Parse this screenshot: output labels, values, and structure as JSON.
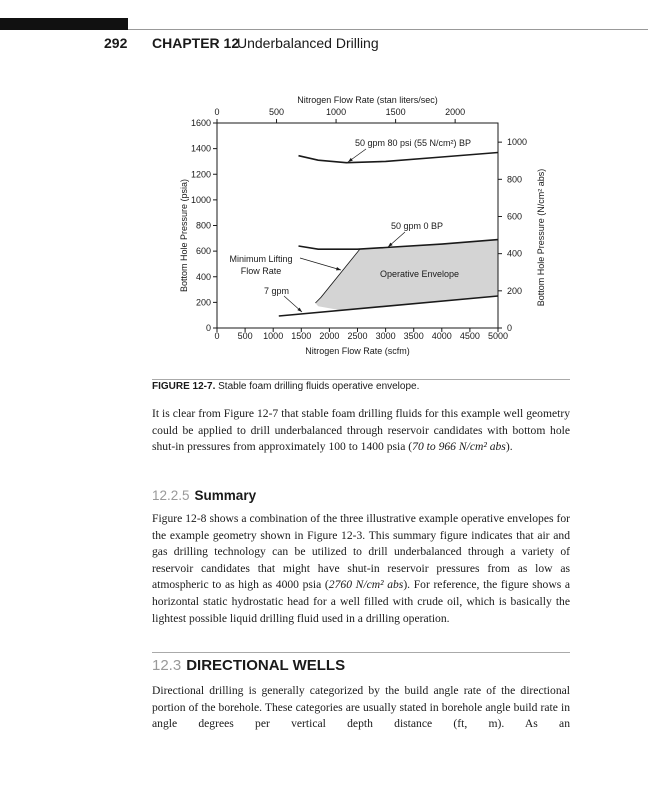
{
  "header": {
    "page_number": "292",
    "chapter": "CHAPTER 12",
    "chapter_title": "Underbalanced Drilling"
  },
  "chart_data": {
    "type": "line",
    "x_label": "Nitrogen Flow Rate (scfm)",
    "x2_label": "Nitrogen Flow Rate (stan liters/sec)",
    "y_label": "Bottom Hole Pressure (psia)",
    "y2_label": "Bottom Hole Pressure (N/cm² abs)",
    "xlim": [
      0,
      5000
    ],
    "xticks": [
      0,
      500,
      1000,
      1500,
      2000,
      2500,
      3000,
      3500,
      4000,
      4500,
      5000
    ],
    "x2lim": [
      0,
      2360
    ],
    "x2ticks": [
      0,
      500,
      1000,
      1500,
      2000
    ],
    "ylim": [
      0,
      1600
    ],
    "yticks": [
      0,
      200,
      400,
      600,
      800,
      1000,
      1200,
      1400,
      1600
    ],
    "y2lim": [
      0,
      1103
    ],
    "y2ticks": [
      0,
      200,
      400,
      600,
      800,
      1000
    ],
    "series": [
      {
        "name": "50 gpm 80 psi (55 N/cm²) BP",
        "color": "#1a1a1a",
        "x": [
          1450,
          1800,
          2300,
          3000,
          4000,
          5000
        ],
        "values": [
          1345,
          1310,
          1290,
          1300,
          1335,
          1370
        ]
      },
      {
        "name": "50 gpm 0 BP",
        "color": "#1a1a1a",
        "x": [
          1450,
          1800,
          2500,
          3000,
          4000,
          5000
        ],
        "values": [
          640,
          615,
          615,
          628,
          655,
          690
        ]
      },
      {
        "name": "Minimum Lifting Flow Rate",
        "color": "#1a1a1a",
        "x": [
          1750,
          1850,
          2550
        ],
        "values": [
          195,
          240,
          620
        ]
      },
      {
        "name": "7 gpm",
        "color": "#1a1a1a",
        "x": [
          1100,
          5000
        ],
        "values": [
          94,
          250
        ]
      },
      {
        "name": "Operative Envelope",
        "type": "area",
        "color": "#d4d4d4",
        "x": [
          1750,
          1850,
          2550,
          3000,
          4000,
          5000,
          5000,
          2200,
          1800
        ],
        "values": [
          195,
          240,
          620,
          628,
          655,
          690,
          250,
          138,
          170
        ]
      }
    ]
  },
  "caption": {
    "label": "FIGURE 12-7.",
    "text": "Stable foam drilling fluids operative envelope."
  },
  "paragraphs": [
    [
      "It is clear from Figure 12-7 that stable foam drilling fluids for this example well geometry could be applied to drill underbalanced through reservoir candidates with bottom hole shut-in pressures from approximately 100 to 1400 psia (",
      "70 to 966 N/cm² abs",
      ")."
    ]
  ],
  "section_1": {
    "number": "12.2.5",
    "title": "Summary",
    "paragraph": [
      "Figure 12-8 shows a combination of the three illustrative example operative envelopes for the example geometry shown in Figure 12-3. This summary figure indicates that air and gas drilling technology can be utilized to drill underbalanced through a variety of reservoir candidates that might have shut-in reservoir pressures from as low as atmospheric to as high as 4000 psia (",
      "2760 N/cm² abs",
      "). For reference, the figure shows a horizontal static hydrostatic head for a well filled with crude oil, which is basically the lightest possible liquid drilling fluid used in a drilling operation."
    ]
  },
  "section_2": {
    "number": "12.3",
    "title": "DIRECTIONAL WELLS",
    "paragraph": [
      "Directional drilling is generally categorized by the build angle rate of the directional portion of the borehole. These categories are usually stated in borehole angle build rate in angle degrees per vertical depth distance (ft, m). As an"
    ]
  }
}
